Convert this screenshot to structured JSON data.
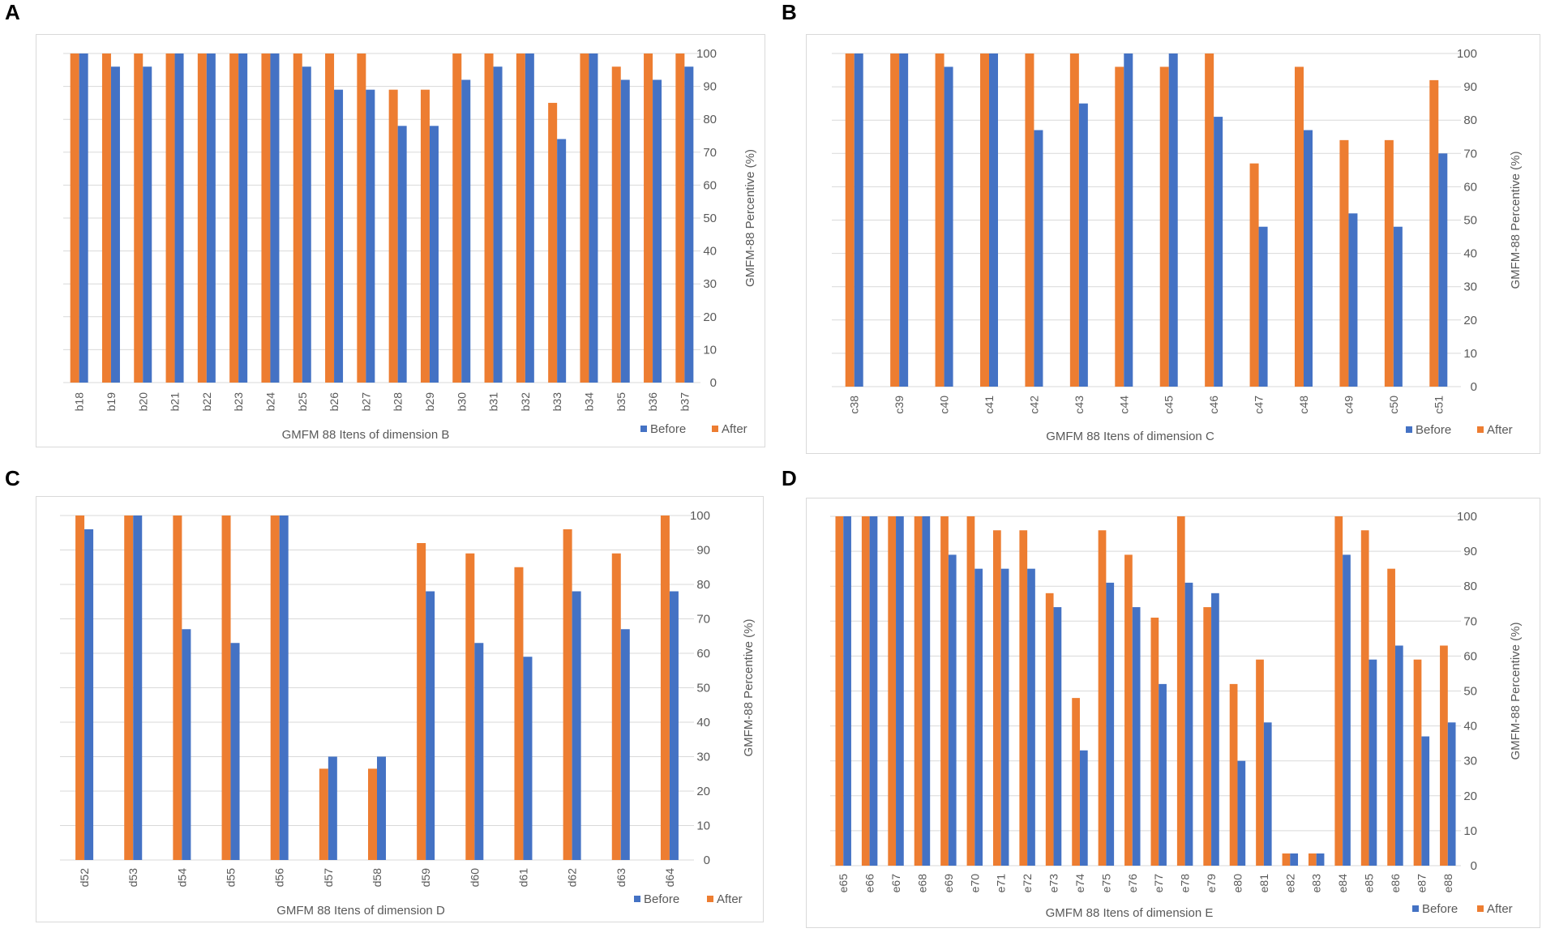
{
  "colors": {
    "before": "#4472c4",
    "after": "#ed7d31",
    "grid": "#d9d9d9",
    "text": "#595959"
  },
  "chart_data": [
    {
      "panel": "A",
      "type": "bar",
      "xlabel": "GMFM 88 Itens of dimension B",
      "ylabel": "GMFM-88 Percentive (%)",
      "ylim": [
        0,
        100
      ],
      "yticks": [
        "0",
        "10",
        "20",
        "30",
        "40",
        "50",
        "60",
        "70",
        "80",
        "90",
        "100"
      ],
      "legend": [
        "Before",
        "After"
      ],
      "categories": [
        "b18",
        "b19",
        "b20",
        "b21",
        "b22",
        "b23",
        "b24",
        "b25",
        "b26",
        "b27",
        "b28",
        "b29",
        "b30",
        "b31",
        "b32",
        "b33",
        "b34",
        "b35",
        "b36",
        "b37"
      ],
      "series": [
        {
          "name": "After",
          "values": [
            100,
            100,
            100,
            100,
            100,
            100,
            100,
            100,
            100,
            100,
            89,
            89,
            100,
            100,
            100,
            85,
            100,
            96,
            100,
            100
          ]
        },
        {
          "name": "Before",
          "values": [
            100,
            96,
            96,
            100,
            100,
            100,
            100,
            96,
            89,
            89,
            78,
            78,
            92,
            96,
            100,
            74,
            100,
            92,
            92,
            96
          ]
        }
      ]
    },
    {
      "panel": "B",
      "type": "bar",
      "xlabel": "GMFM 88 Itens of dimension C",
      "ylabel": "GMFM-88 Percentive (%)",
      "ylim": [
        0,
        100
      ],
      "yticks": [
        "0",
        "10",
        "20",
        "30",
        "40",
        "50",
        "60",
        "70",
        "80",
        "90",
        "100"
      ],
      "legend": [
        "Before",
        "After"
      ],
      "categories": [
        "c38",
        "c39",
        "c40",
        "c41",
        "c42",
        "c43",
        "c44",
        "c45",
        "c46",
        "c47",
        "c48",
        "c49",
        "c50",
        "c51"
      ],
      "series": [
        {
          "name": "After",
          "values": [
            100,
            100,
            100,
            100,
            100,
            100,
            96,
            96,
            100,
            67,
            96,
            74,
            74,
            92
          ]
        },
        {
          "name": "Before",
          "values": [
            100,
            100,
            96,
            100,
            77,
            85,
            100,
            100,
            81,
            48,
            77,
            52,
            48,
            70
          ]
        }
      ]
    },
    {
      "panel": "C",
      "type": "bar",
      "xlabel": "GMFM 88 Itens of dimension D",
      "ylabel": "GMFM-88 Percentive (%)",
      "ylim": [
        0,
        100
      ],
      "yticks": [
        "0",
        "10",
        "20",
        "30",
        "40",
        "50",
        "60",
        "70",
        "80",
        "90",
        "100"
      ],
      "legend": [
        "Before",
        "After"
      ],
      "categories": [
        "d52",
        "d53",
        "d54",
        "d55",
        "d56",
        "d57",
        "d58",
        "d59",
        "d60",
        "d61",
        "d62",
        "d63",
        "d64"
      ],
      "series": [
        {
          "name": "After",
          "values": [
            100,
            100,
            100,
            100,
            100,
            26.5,
            26.5,
            92,
            89,
            85,
            96,
            89,
            100
          ]
        },
        {
          "name": "Before",
          "values": [
            96,
            100,
            67,
            63,
            100,
            30,
            30,
            78,
            63,
            59,
            78,
            67,
            78
          ]
        }
      ]
    },
    {
      "panel": "D",
      "type": "bar",
      "xlabel": "GMFM 88 Itens of dimension E",
      "ylabel": "GMFM-88 Percentive (%)",
      "ylim": [
        0,
        100
      ],
      "yticks": [
        "0",
        "10",
        "20",
        "30",
        "40",
        "50",
        "60",
        "70",
        "80",
        "90",
        "100"
      ],
      "legend": [
        "Before",
        "After"
      ],
      "categories": [
        "e65",
        "e66",
        "e67",
        "e68",
        "e69",
        "e70",
        "e71",
        "e72",
        "e73",
        "e74",
        "e75",
        "e76",
        "e77",
        "e78",
        "e79",
        "e80",
        "e81",
        "e82",
        "e83",
        "e84",
        "e85",
        "e86",
        "e87",
        "e88"
      ],
      "series": [
        {
          "name": "After",
          "values": [
            100,
            100,
            100,
            100,
            100,
            100,
            96,
            96,
            78,
            48,
            96,
            89,
            71,
            100,
            74,
            52,
            59,
            3.5,
            3.5,
            100,
            96,
            85,
            59,
            63
          ]
        },
        {
          "name": "Before",
          "values": [
            100,
            100,
            100,
            100,
            89,
            85,
            85,
            85,
            74,
            33,
            81,
            74,
            52,
            81,
            78,
            30,
            41,
            3.5,
            3.5,
            89,
            59,
            63,
            37,
            41
          ]
        }
      ]
    }
  ]
}
